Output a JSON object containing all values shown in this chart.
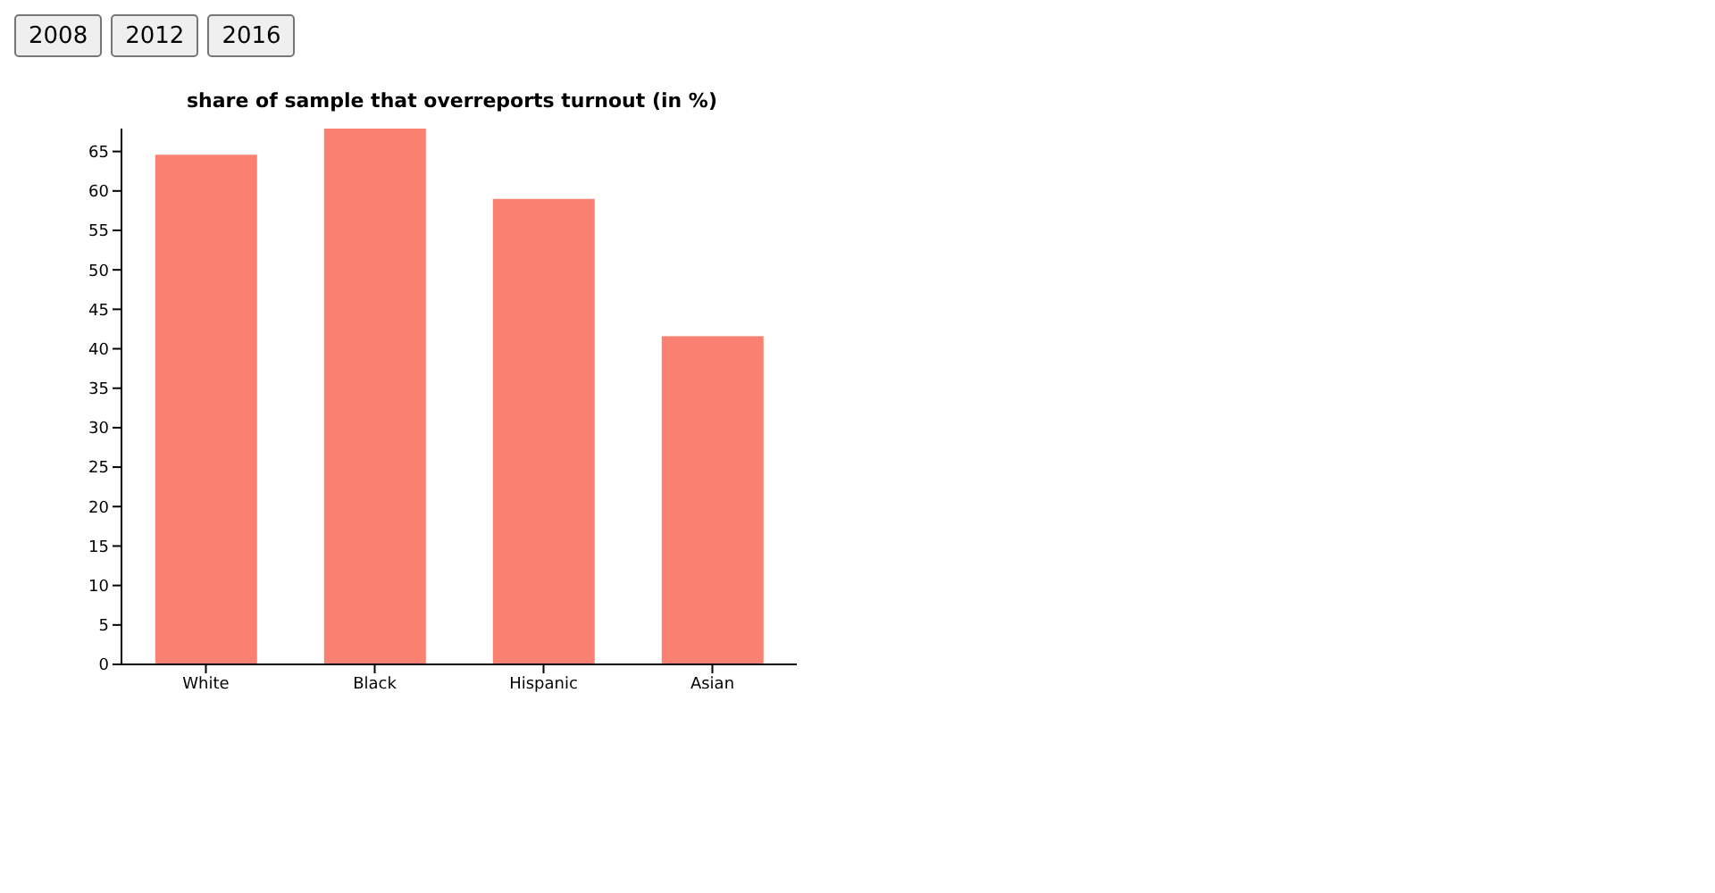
{
  "chart_data": {
    "type": "bar",
    "title": "share of sample that overreports turnout (in %)",
    "categories": [
      "White",
      "Black",
      "Hispanic",
      "Asian"
    ],
    "values": [
      64.6,
      67.9,
      59.0,
      41.6
    ],
    "color": "#fa8072",
    "ylim": [
      0,
      67.9
    ],
    "yticks": [
      0,
      5,
      10,
      15,
      20,
      25,
      30,
      35,
      40,
      45,
      50,
      55,
      60,
      65
    ],
    "annotations": [
      "2008",
      "2012",
      "2016"
    ]
  }
}
